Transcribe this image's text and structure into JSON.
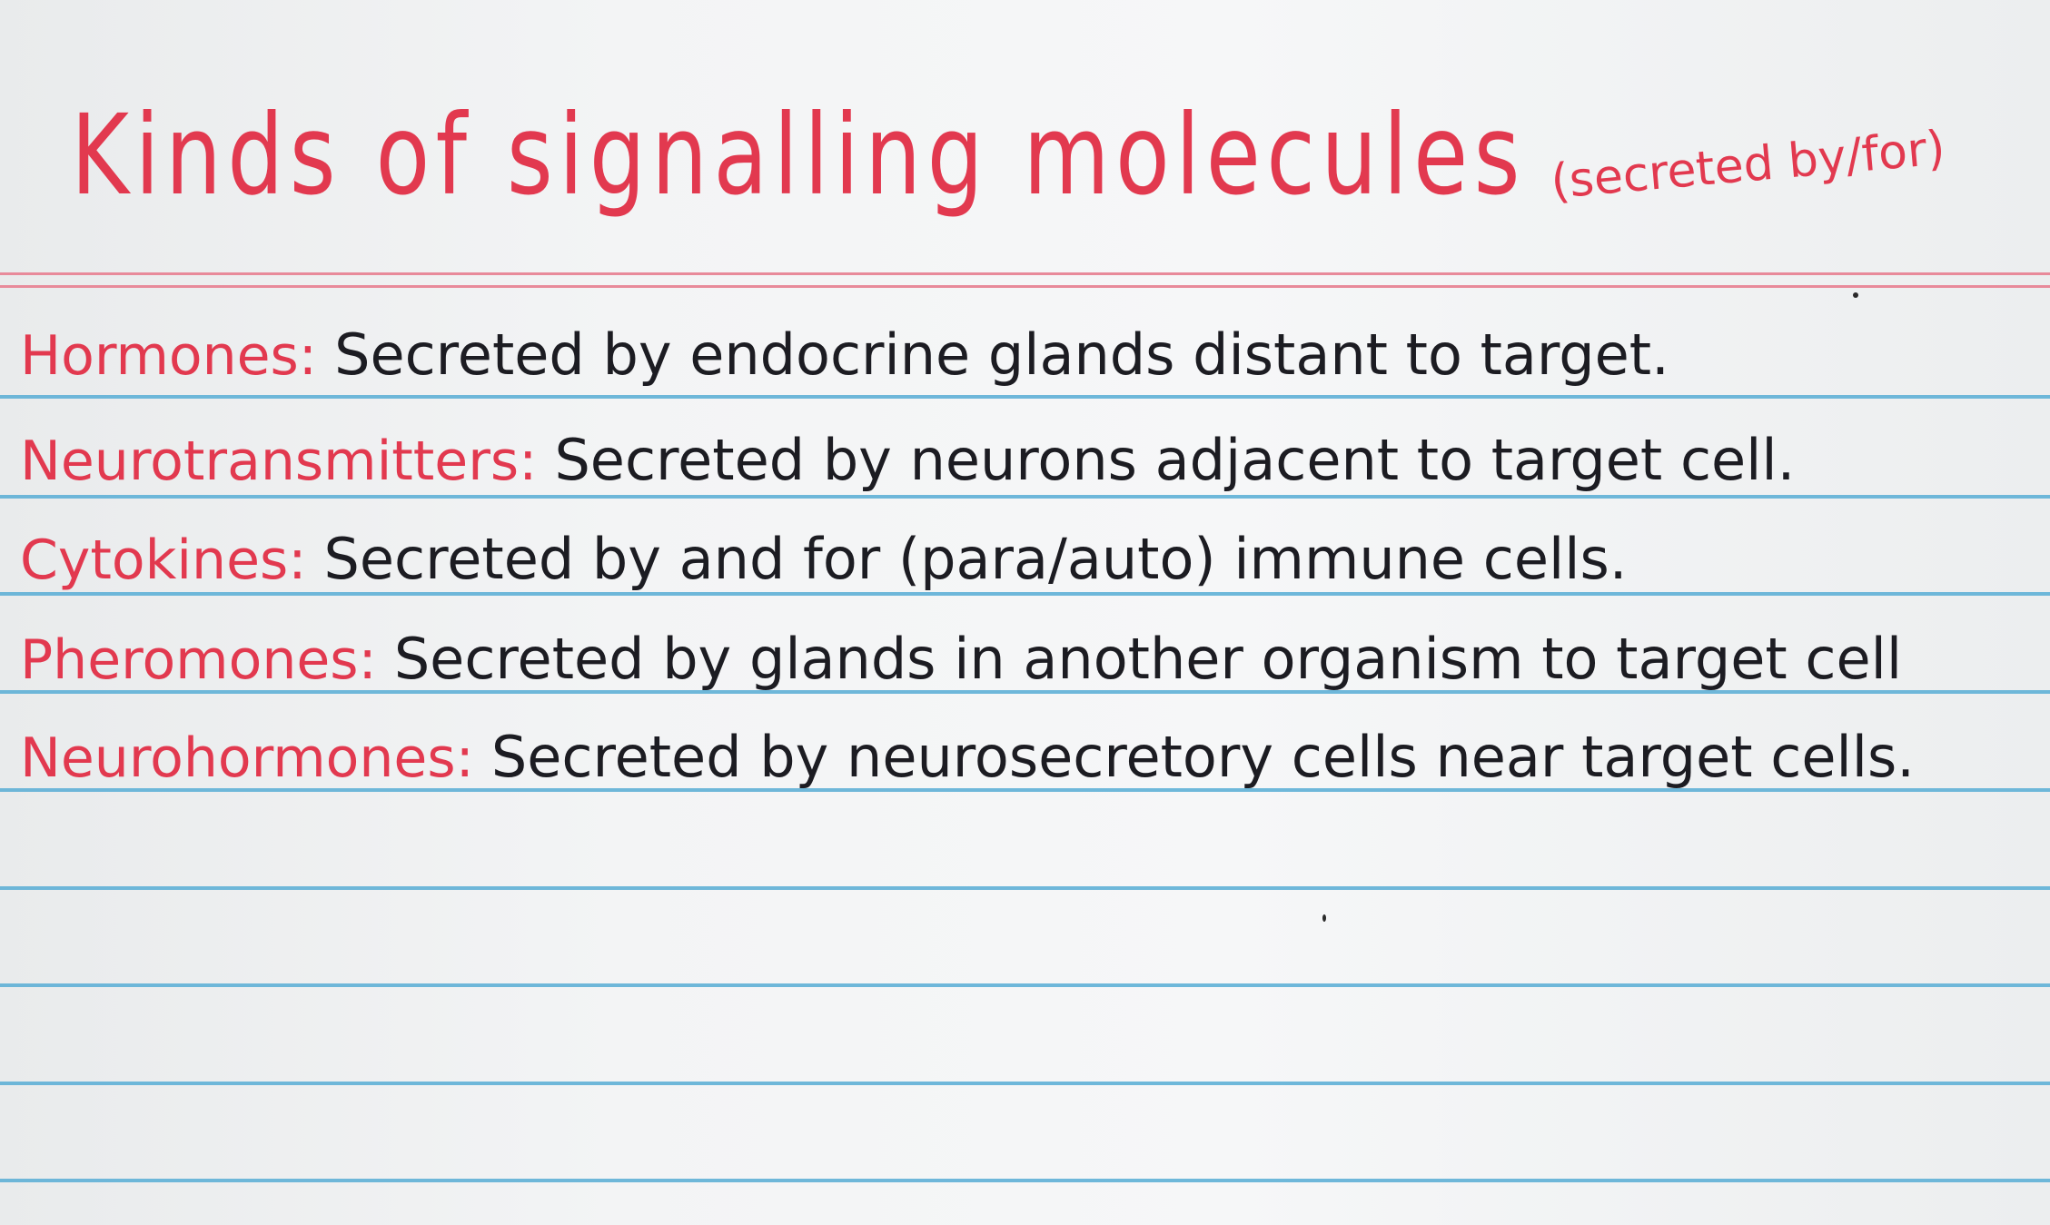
{
  "card": {
    "title": "Kinds of signalling molecules",
    "subtitle": "(secreted by/for)",
    "entries": [
      {
        "term": "Hormones:",
        "definition": "Secreted by endocrine glands distant to target."
      },
      {
        "term": "Neurotransmitters:",
        "definition": "Secreted by neurons adjacent to target cell."
      },
      {
        "term": "Cytokines:",
        "definition": "Secreted by and for (para/auto) immune cells."
      },
      {
        "term": "Pheromones:",
        "definition": "Secreted by glands in another organism to target cell"
      },
      {
        "term": "Neurohormones:",
        "definition": "Secreted by neurosecretory cells near target cells."
      }
    ]
  },
  "colors": {
    "paper": "#f3f4f5",
    "red_ink": "#e2394f",
    "black_ink": "#1c1c22",
    "blue_rule": "#5fb0d6",
    "red_rule": "#e88a9a"
  }
}
